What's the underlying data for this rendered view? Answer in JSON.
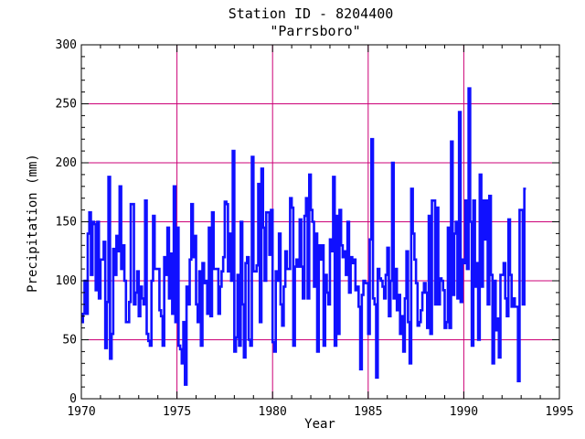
{
  "chart_data": {
    "type": "line",
    "title": "Station ID - 8204400",
    "subtitle": "\"Parrsboro\"",
    "xlabel": "Year",
    "ylabel": "Precipitation (mm)",
    "xlim": [
      1970,
      1995
    ],
    "ylim": [
      0,
      300
    ],
    "xticks": [
      "1970",
      "1975",
      "1980",
      "1985",
      "1990",
      "1995"
    ],
    "yticks": [
      "0",
      "50",
      "100",
      "150",
      "200",
      "250",
      "300"
    ],
    "grid": true,
    "series": [
      {
        "x_start": 1970.0,
        "x_step": 0.0833333,
        "values": [
          65,
          72,
          100,
          72,
          140,
          158,
          105,
          150,
          148,
          92,
          150,
          85,
          118,
          118,
          133,
          43,
          82,
          188,
          34,
          55,
          127,
          105,
          138,
          125,
          180,
          110,
          130,
          100,
          65,
          65,
          82,
          165,
          165,
          80,
          90,
          108,
          70,
          95,
          85,
          80,
          168,
          55,
          49,
          45,
          100,
          155,
          110,
          110,
          110,
          75,
          70,
          45,
          120,
          105,
          145,
          85,
          123,
          72,
          180,
          65,
          145,
          45,
          42,
          30,
          65,
          12,
          95,
          80,
          118,
          165,
          120,
          138,
          80,
          65,
          108,
          45,
          115,
          98,
          100,
          72,
          145,
          70,
          158,
          110,
          110,
          110,
          72,
          95,
          108,
          120,
          167,
          165,
          108,
          140,
          100,
          210,
          40,
          52,
          105,
          45,
          150,
          80,
          35,
          115,
          120,
          50,
          45,
          205,
          108,
          108,
          113,
          182,
          65,
          195,
          145,
          100,
          158,
          158,
          122,
          160,
          48,
          40,
          108,
          100,
          140,
          80,
          62,
          95,
          125,
          110,
          110,
          170,
          162,
          45,
          112,
          118,
          112,
          152,
          112,
          85,
          155,
          170,
          85,
          190,
          160,
          150,
          95,
          140,
          40,
          130,
          118,
          130,
          45,
          105,
          90,
          80,
          135,
          125,
          188,
          45,
          155,
          55,
          160,
          130,
          120,
          125,
          105,
          150,
          90,
          120,
          115,
          118,
          92,
          95,
          78,
          25,
          88,
          100,
          98,
          98,
          55,
          135,
          220,
          85,
          80,
          18,
          110,
          102,
          100,
          95,
          85,
          105,
          128,
          70,
          100,
          200,
          85,
          110,
          75,
          88,
          55,
          70,
          40,
          85,
          125,
          65,
          30,
          178,
          140,
          118,
          98,
          62,
          65,
          75,
          90,
          98,
          90,
          60,
          155,
          55,
          168,
          168,
          80,
          162,
          80,
          102,
          100,
          92,
          60,
          65,
          145,
          60,
          218,
          88,
          140,
          150,
          85,
          243,
          82,
          118,
          115,
          168,
          110,
          263,
          150,
          45,
          168,
          95,
          115,
          50,
          190,
          95,
          168,
          135,
          168,
          80,
          172,
          105,
          30,
          100,
          58,
          68,
          35,
          105,
          105,
          115,
          85,
          70,
          152,
          105,
          78,
          85,
          78,
          78,
          15,
          160,
          160,
          80,
          178
        ]
      }
    ]
  }
}
